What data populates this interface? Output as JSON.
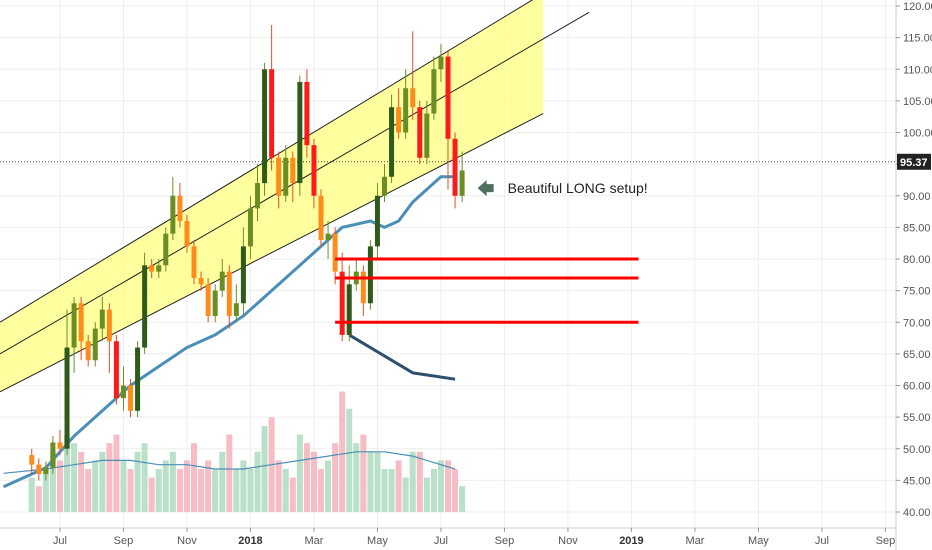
{
  "chart_data": {
    "type": "candlestick",
    "colors": {
      "up": "#6b8e23",
      "up_strong": "#2e5b1a",
      "down": "#ff8c1a",
      "down_strong": "#ff1a1a",
      "wick_up": "#6b8e23",
      "wick_down": "#e84a2a",
      "channel_fill": "#ffff80",
      "channel_border": "#222222",
      "ma_line": "#4a8fb8",
      "ma_line2": "#2f4f6f",
      "support": "#ff0000",
      "arrow": "#4f6f5f",
      "vol_up": "#b9e0c8",
      "vol_down": "#f7bcc4",
      "vol_ma": "#4a8fb8",
      "price_tag": "#222222",
      "grid": "#eeeeee"
    },
    "y_axis": {
      "min": 40,
      "max": 120,
      "ticks": [
        "40.00",
        "45.00",
        "50.00",
        "55.00",
        "60.00",
        "65.00",
        "70.00",
        "75.00",
        "80.00",
        "85.00",
        "90.00",
        "95.00",
        "100.00",
        "105.00",
        "110.00",
        "115.00",
        "120.00"
      ],
      "current_price": "95.37",
      "current_value": 95.37
    },
    "x_axis": {
      "labels": [
        {
          "text": "Jul",
          "week": 4,
          "bold": false
        },
        {
          "text": "Sep",
          "week": 13,
          "bold": false
        },
        {
          "text": "Nov",
          "week": 22,
          "bold": false
        },
        {
          "text": "2018",
          "week": 31,
          "bold": true
        },
        {
          "text": "Mar",
          "week": 40,
          "bold": false
        },
        {
          "text": "May",
          "week": 49,
          "bold": false
        },
        {
          "text": "Jul",
          "week": 58,
          "bold": false
        },
        {
          "text": "Sep",
          "week": 67,
          "bold": false
        },
        {
          "text": "Nov",
          "week": 76,
          "bold": false
        },
        {
          "text": "2019",
          "week": 85,
          "bold": true
        },
        {
          "text": "Mar",
          "week": 94,
          "bold": false
        },
        {
          "text": "May",
          "week": 103,
          "bold": false
        },
        {
          "text": "Jul",
          "week": 112,
          "bold": false
        },
        {
          "text": "Sep",
          "week": 121,
          "bold": false
        }
      ],
      "week_range": [
        -4.5,
        122.5
      ]
    },
    "candles": [
      [
        49,
        47.5,
        50,
        46
      ],
      [
        47.5,
        46,
        48.5,
        45
      ],
      [
        46,
        47,
        48,
        45
      ],
      [
        47,
        51,
        52,
        46
      ],
      [
        51,
        50,
        53,
        49
      ],
      [
        50,
        66,
        72,
        49
      ],
      [
        66,
        73,
        74,
        62
      ],
      [
        73,
        67,
        74,
        64
      ],
      [
        67,
        64,
        68,
        63
      ],
      [
        64,
        69,
        70,
        63
      ],
      [
        69,
        72,
        74,
        67
      ],
      [
        72,
        67,
        73,
        62
      ],
      [
        67,
        58,
        68,
        57
      ],
      [
        58,
        60,
        63,
        56
      ],
      [
        60,
        56,
        61,
        55
      ],
      [
        56,
        66,
        67,
        55
      ],
      [
        66,
        79,
        81,
        65
      ],
      [
        79,
        78,
        80,
        77
      ],
      [
        78,
        79,
        80,
        77
      ],
      [
        79,
        84,
        85,
        78
      ],
      [
        84,
        90,
        93,
        83
      ],
      [
        90,
        86,
        92,
        85
      ],
      [
        86,
        82,
        87,
        81
      ],
      [
        82,
        77,
        83,
        76
      ],
      [
        77,
        76,
        78,
        75
      ],
      [
        76,
        71,
        77,
        70
      ],
      [
        71,
        75,
        76,
        70
      ],
      [
        75,
        78,
        80,
        74
      ],
      [
        78,
        71,
        79,
        69
      ],
      [
        71,
        73,
        76,
        70
      ],
      [
        73,
        82,
        85,
        71
      ],
      [
        82,
        88,
        90,
        80
      ],
      [
        88,
        92,
        95,
        86
      ],
      [
        92,
        110,
        111,
        90
      ],
      [
        110,
        96,
        117,
        94
      ],
      [
        96,
        90,
        97,
        88
      ],
      [
        90,
        96,
        98,
        89
      ],
      [
        96,
        92,
        97,
        89
      ],
      [
        92,
        108,
        109,
        90
      ],
      [
        108,
        98,
        110,
        96
      ],
      [
        98,
        90,
        99,
        88
      ],
      [
        90,
        83,
        91,
        82
      ],
      [
        83,
        84,
        86,
        80
      ],
      [
        84,
        78,
        85,
        76
      ],
      [
        78,
        68,
        81,
        67
      ],
      [
        68,
        76,
        79,
        67
      ],
      [
        76,
        78,
        80,
        75
      ],
      [
        78,
        73,
        79,
        71
      ],
      [
        73,
        82,
        83,
        72
      ],
      [
        82,
        90,
        92,
        80
      ],
      [
        90,
        93,
        95,
        89
      ],
      [
        93,
        104,
        106,
        92
      ],
      [
        104,
        100,
        107,
        99
      ],
      [
        100,
        107,
        110,
        99
      ],
      [
        107,
        104,
        116,
        102
      ],
      [
        104,
        96,
        105,
        95
      ],
      [
        96,
        103,
        105,
        95
      ],
      [
        103,
        110,
        112,
        102
      ],
      [
        110,
        112,
        114,
        108
      ],
      [
        112,
        99,
        113,
        91
      ],
      [
        99,
        90,
        100,
        88
      ],
      [
        90,
        94,
        97,
        89
      ]
    ],
    "ma_primary": [
      [
        -4,
        44
      ],
      [
        2,
        47
      ],
      [
        6,
        52
      ],
      [
        10,
        56
      ],
      [
        14,
        60
      ],
      [
        18,
        63
      ],
      [
        22,
        66
      ],
      [
        26,
        68
      ],
      [
        30,
        71
      ],
      [
        34,
        75
      ],
      [
        38,
        79
      ],
      [
        42,
        83
      ],
      [
        44,
        85
      ],
      [
        48,
        86
      ],
      [
        50,
        85
      ],
      [
        52,
        86
      ],
      [
        54,
        89
      ],
      [
        56,
        91
      ],
      [
        58,
        93
      ],
      [
        60,
        93
      ]
    ],
    "ma_secondary": [
      [
        45,
        68
      ],
      [
        48,
        66
      ],
      [
        51,
        64
      ],
      [
        54,
        62
      ],
      [
        57,
        61.5
      ],
      [
        60,
        61
      ]
    ],
    "channel": {
      "lower_start": [
        -4.5,
        59
      ],
      "lower_end": [
        72.5,
        103
      ],
      "upper_start": [
        -4.5,
        70
      ],
      "upper_end": [
        72.5,
        122
      ],
      "mid_start": [
        -4.5,
        65
      ],
      "mid_end": [
        79,
        119
      ]
    },
    "support_lines": [
      {
        "value": 80,
        "from_week": 43,
        "to_week": 86
      },
      {
        "value": 77,
        "from_week": 43,
        "to_week": 86
      },
      {
        "value": 70,
        "from_week": 43,
        "to_week": 86
      }
    ],
    "volume": [
      [
        8,
        "up"
      ],
      [
        6,
        "down"
      ],
      [
        10,
        "up"
      ],
      [
        14,
        "up"
      ],
      [
        12,
        "down"
      ],
      [
        18,
        "up"
      ],
      [
        16,
        "up"
      ],
      [
        14,
        "down"
      ],
      [
        10,
        "down"
      ],
      [
        12,
        "up"
      ],
      [
        14,
        "up"
      ],
      [
        16,
        "down"
      ],
      [
        18,
        "down"
      ],
      [
        12,
        "up"
      ],
      [
        10,
        "down"
      ],
      [
        14,
        "up"
      ],
      [
        16,
        "up"
      ],
      [
        8,
        "down"
      ],
      [
        10,
        "up"
      ],
      [
        12,
        "up"
      ],
      [
        14,
        "up"
      ],
      [
        10,
        "down"
      ],
      [
        12,
        "down"
      ],
      [
        16,
        "down"
      ],
      [
        10,
        "down"
      ],
      [
        12,
        "down"
      ],
      [
        10,
        "up"
      ],
      [
        14,
        "up"
      ],
      [
        18,
        "down"
      ],
      [
        10,
        "up"
      ],
      [
        12,
        "up"
      ],
      [
        10,
        "up"
      ],
      [
        14,
        "up"
      ],
      [
        20,
        "up"
      ],
      [
        22,
        "down"
      ],
      [
        12,
        "down"
      ],
      [
        10,
        "up"
      ],
      [
        8,
        "down"
      ],
      [
        18,
        "up"
      ],
      [
        16,
        "down"
      ],
      [
        14,
        "down"
      ],
      [
        10,
        "down"
      ],
      [
        12,
        "up"
      ],
      [
        16,
        "down"
      ],
      [
        28,
        "down"
      ],
      [
        24,
        "up"
      ],
      [
        16,
        "up"
      ],
      [
        18,
        "down"
      ],
      [
        14,
        "up"
      ],
      [
        14,
        "up"
      ],
      [
        10,
        "up"
      ],
      [
        10,
        "up"
      ],
      [
        12,
        "down"
      ],
      [
        8,
        "up"
      ],
      [
        14,
        "up"
      ],
      [
        14,
        "down"
      ],
      [
        8,
        "up"
      ],
      [
        10,
        "up"
      ],
      [
        12,
        "up"
      ],
      [
        12,
        "down"
      ],
      [
        10,
        "down"
      ],
      [
        6,
        "up"
      ]
    ],
    "volume_ma": [
      [
        -4,
        9
      ],
      [
        2,
        10
      ],
      [
        6,
        11
      ],
      [
        10,
        12
      ],
      [
        14,
        12
      ],
      [
        18,
        11
      ],
      [
        22,
        11
      ],
      [
        26,
        10
      ],
      [
        30,
        10
      ],
      [
        34,
        11
      ],
      [
        38,
        12
      ],
      [
        42,
        13
      ],
      [
        46,
        14
      ],
      [
        50,
        14
      ],
      [
        54,
        13
      ],
      [
        56,
        12
      ],
      [
        58,
        11
      ],
      [
        60,
        10
      ]
    ],
    "annotation": "Beautiful LONG setup!"
  }
}
